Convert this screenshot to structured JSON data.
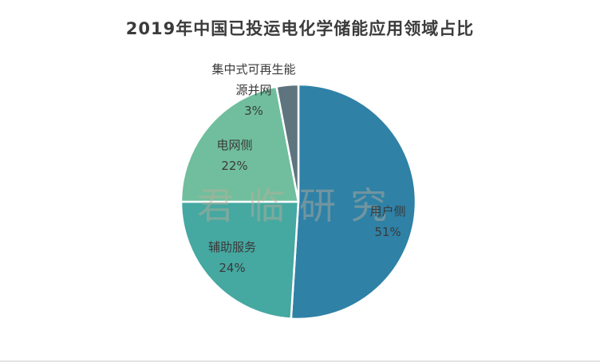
{
  "page": {
    "watermark": "君临研究"
  },
  "chart_data": {
    "type": "pie",
    "title": "2019年中国已投运电化学储能应用领域占比",
    "start_angle_deg": 0,
    "direction": "clockwise",
    "donut": false,
    "legend": "none",
    "labels_on_slices": true,
    "slices": [
      {
        "id": "user-side",
        "label": "用户侧",
        "value": 51,
        "pct_label": "51%",
        "color": "#2F81A6"
      },
      {
        "id": "auxiliary-service",
        "label": "辅助服务",
        "value": 24,
        "pct_label": "24%",
        "color": "#45A8A1"
      },
      {
        "id": "grid-side",
        "label": "电网侧",
        "value": 22,
        "pct_label": "22%",
        "color": "#70BE9D"
      },
      {
        "id": "renewable-grid-connection",
        "label": "集中式可再生能源并网",
        "label_lines": [
          "集中式可再生能",
          "源并网"
        ],
        "value": 3,
        "pct_label": "3%",
        "color": "#5E747E"
      }
    ]
  }
}
